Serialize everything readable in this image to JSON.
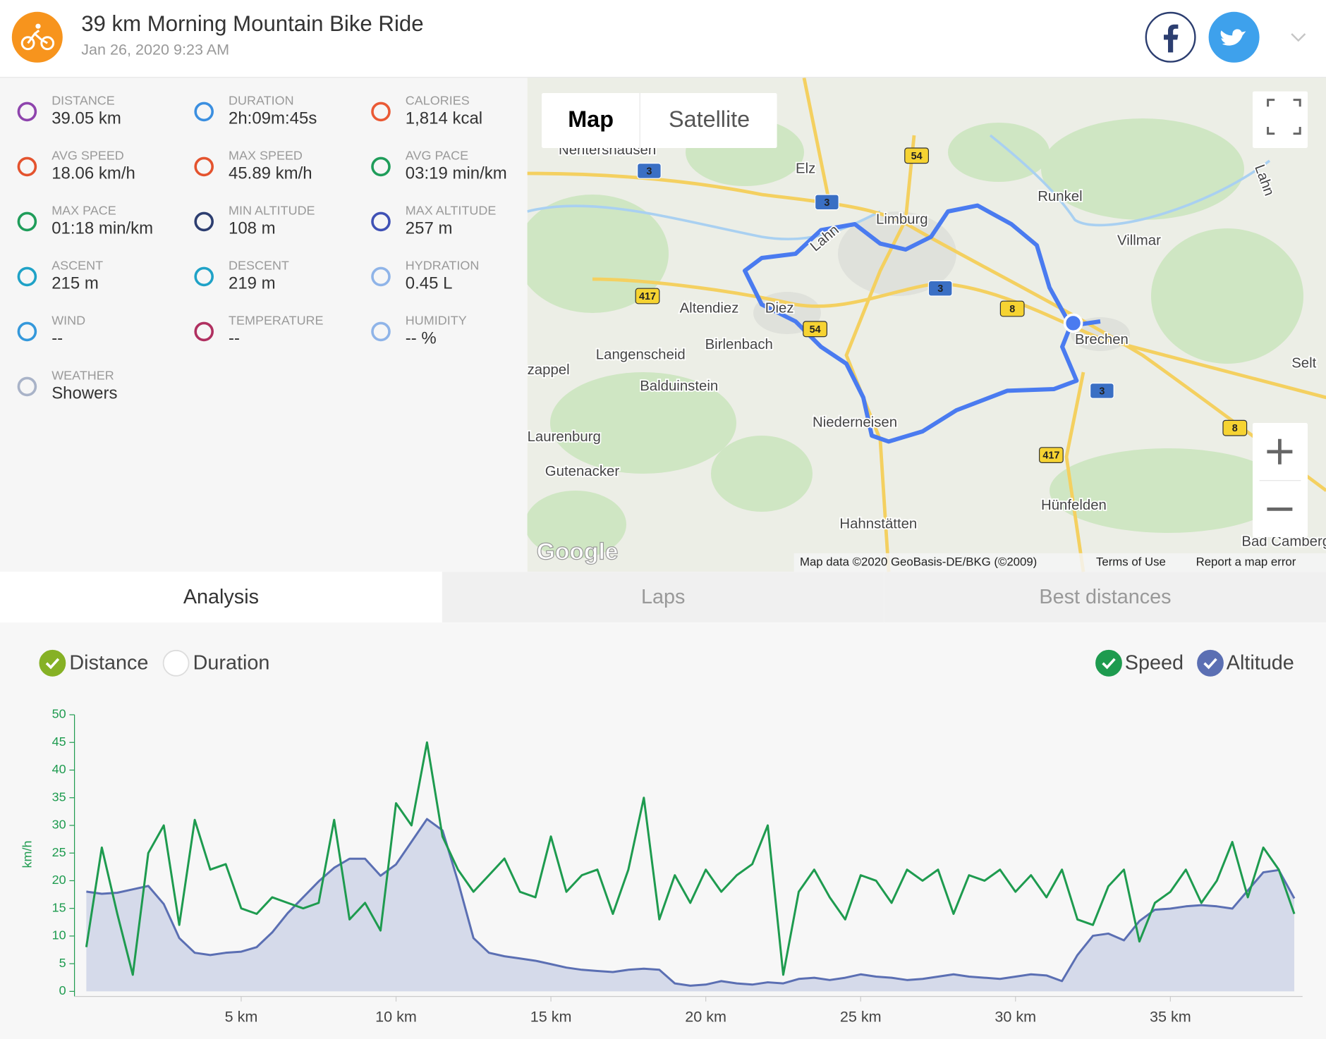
{
  "header": {
    "title": "39 km Morning Mountain Bike Ride",
    "date": "Jan 26, 2020 9:23 AM"
  },
  "stats": [
    {
      "label": "DISTANCE",
      "value": "39.05 km"
    },
    {
      "label": "DURATION",
      "value": "2h:09m:45s"
    },
    {
      "label": "CALORIES",
      "value": "1,814 kcal"
    },
    {
      "label": "AVG SPEED",
      "value": "18.06 km/h"
    },
    {
      "label": "MAX SPEED",
      "value": "45.89 km/h"
    },
    {
      "label": "AVG PACE",
      "value": "03:19 min/km"
    },
    {
      "label": "MAX PACE",
      "value": "01:18 min/km"
    },
    {
      "label": "MIN ALTITUDE",
      "value": "108 m"
    },
    {
      "label": "MAX ALTITUDE",
      "value": "257 m"
    },
    {
      "label": "ASCENT",
      "value": "215 m"
    },
    {
      "label": "DESCENT",
      "value": "219 m"
    },
    {
      "label": "HYDRATION",
      "value": "0.45 L"
    },
    {
      "label": "WIND",
      "value": "--"
    },
    {
      "label": "TEMPERATURE",
      "value": "--"
    },
    {
      "label": "HUMIDITY",
      "value": "-- %"
    },
    {
      "label": "WEATHER",
      "value": "Showers"
    }
  ],
  "map": {
    "buttons": [
      "Map",
      "Satellite"
    ],
    "labels": [
      "Nentershausen",
      "Elz",
      "Limburg",
      "Runkel",
      "Villmar",
      "Altendiez",
      "Diez",
      "Brechen",
      "Langenscheid",
      "Birlenbach",
      "Selt",
      "zappel",
      "Balduinstein",
      "Niederneisen",
      "Laurenburg",
      "Gutenacker",
      "Hünfelden",
      "Hahnstätten",
      "Bad Camberg",
      "Lahn",
      "Lahn"
    ],
    "shields": [
      "3",
      "3",
      "3",
      "3",
      "54",
      "54",
      "417",
      "417",
      "8",
      "8"
    ],
    "logo": "Google",
    "footer": [
      "Map data ©2020 GeoBasis-DE/BKG (©2009)",
      "Terms of Use",
      "Report a map error"
    ]
  },
  "tabs": [
    "Analysis",
    "Laps",
    "Best distances"
  ],
  "active_tab": 0,
  "chart_data": {
    "type": "line",
    "x_modes": [
      {
        "label": "Distance",
        "checked": true
      },
      {
        "label": "Duration",
        "checked": false
      }
    ],
    "x_mode_color": "#86b125",
    "y_label": "km/h",
    "x": [
      0,
      0.5,
      1,
      1.5,
      2,
      2.5,
      3,
      3.5,
      4,
      4.5,
      5,
      5.5,
      6,
      6.5,
      7,
      7.5,
      8,
      8.5,
      9,
      9.5,
      10,
      10.5,
      11,
      11.5,
      12,
      12.5,
      13,
      13.5,
      14,
      14.5,
      15,
      15.5,
      16,
      16.5,
      17,
      17.5,
      18,
      18.5,
      19,
      19.5,
      20,
      20.5,
      21,
      21.5,
      22,
      22.5,
      23,
      23.5,
      24,
      24.5,
      25,
      25.5,
      26,
      26.5,
      27,
      27.5,
      28,
      28.5,
      29,
      29.5,
      30,
      30.5,
      31,
      31.5,
      32,
      32.5,
      33,
      33.5,
      34,
      34.5,
      35,
      35.5,
      36,
      36.5,
      37,
      37.5,
      38,
      38.5,
      39
    ],
    "xlim": [
      0,
      39.05
    ],
    "xticks": [
      {
        "value": 5,
        "label": "5 km"
      },
      {
        "value": 10,
        "label": "10 km"
      },
      {
        "value": 15,
        "label": "15 km"
      },
      {
        "value": 20,
        "label": "20 km"
      },
      {
        "value": 25,
        "label": "25 km"
      },
      {
        "value": 30,
        "label": "30 km"
      },
      {
        "value": 35,
        "label": "35 km"
      }
    ],
    "ylim": [
      0,
      50
    ],
    "yticks": [
      0,
      5,
      10,
      15,
      20,
      25,
      30,
      35,
      40,
      45,
      50
    ],
    "y2lim": [
      103,
      347
    ],
    "series": [
      {
        "name": "Altitude",
        "color": "#5b6fb3",
        "fill": "#d5daea",
        "axis": "y2",
        "checked": true,
        "values": [
          191,
          189,
          190,
          193,
          196,
          180,
          150,
          137,
          135,
          137,
          138,
          142,
          155,
          172,
          186,
          200,
          212,
          220,
          220,
          205,
          215,
          235,
          255,
          245,
          200,
          150,
          137,
          134,
          132,
          130,
          127,
          124,
          122,
          121,
          120,
          122,
          123,
          122,
          110,
          108,
          109,
          112,
          110,
          109,
          111,
          110,
          114,
          115,
          113,
          115,
          118,
          116,
          115,
          113,
          114,
          116,
          118,
          116,
          115,
          114,
          116,
          118,
          117,
          112,
          135,
          152,
          154,
          148,
          165,
          175,
          176,
          178,
          179,
          178,
          176,
          192,
          208,
          210,
          185
        ]
      },
      {
        "name": "Speed",
        "color": "#1e9b4f",
        "checked": true,
        "values": [
          8,
          26,
          14,
          3,
          25,
          30,
          12,
          31,
          22,
          23,
          15,
          14,
          17,
          16,
          15,
          16,
          31,
          13,
          16,
          11,
          34,
          30,
          45,
          28,
          22,
          18,
          21,
          24,
          18,
          17,
          28,
          18,
          21,
          22,
          14,
          22,
          35,
          13,
          21,
          16,
          22,
          18,
          21,
          23,
          30,
          3,
          18,
          22,
          17,
          13,
          21,
          20,
          16,
          22,
          20,
          22,
          14,
          21,
          20,
          22,
          18,
          21,
          17,
          22,
          13,
          12,
          19,
          22,
          9,
          16,
          18,
          22,
          16,
          20,
          27,
          17,
          26,
          22,
          14
        ]
      }
    ]
  }
}
